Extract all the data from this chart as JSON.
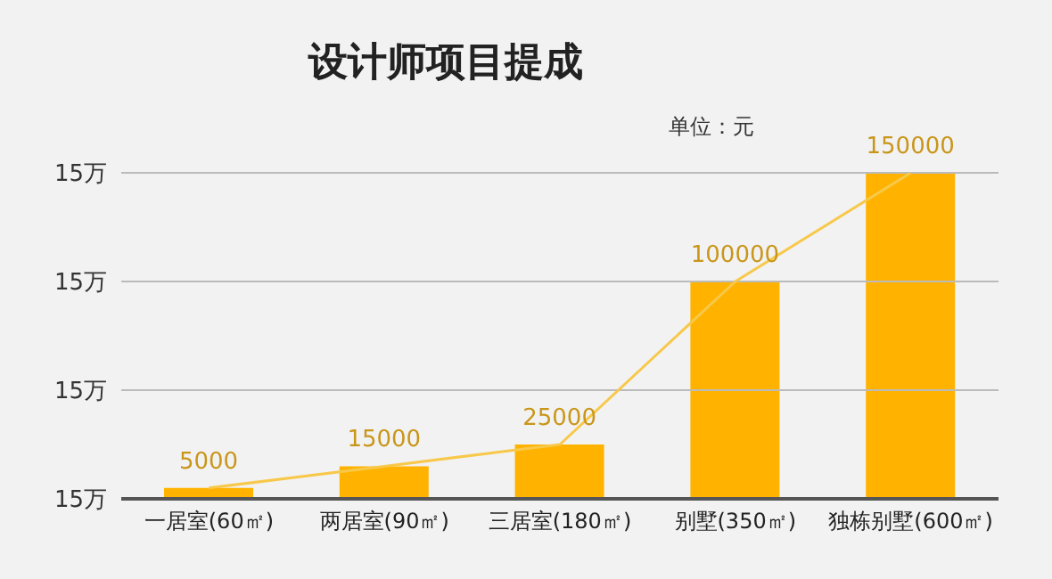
{
  "chart_data": {
    "type": "bar",
    "title": "设计师项目提成",
    "annotations": [
      "单位：元",
      "15万",
      "15万",
      "15万",
      "15万"
    ],
    "categories": [
      "一居室(60㎡)",
      "两居室(90㎡)",
      "三居室(180㎡)",
      "别墅(350㎡)",
      "独栋别墅(600㎡)"
    ],
    "series": [
      {
        "color": "#ffb300",
        "values": [
          5000,
          15000,
          25000,
          100000,
          150000
        ],
        "value_labels": [
          "5000",
          "15000",
          "25000",
          "100000",
          "150000"
        ]
      },
      {
        "type": "line",
        "color": "#f7c84a",
        "values": [
          5000,
          15000,
          25000,
          100000,
          150000
        ]
      }
    ],
    "ref_lines": [
      {
        "axis": "y",
        "value": 50000,
        "color": "#bbbbbb"
      },
      {
        "axis": "y",
        "value": 100000,
        "color": "#bbbbbb"
      },
      {
        "axis": "y",
        "value": 150000,
        "color": "#bbbbbb"
      }
    ],
    "legend": false
  }
}
